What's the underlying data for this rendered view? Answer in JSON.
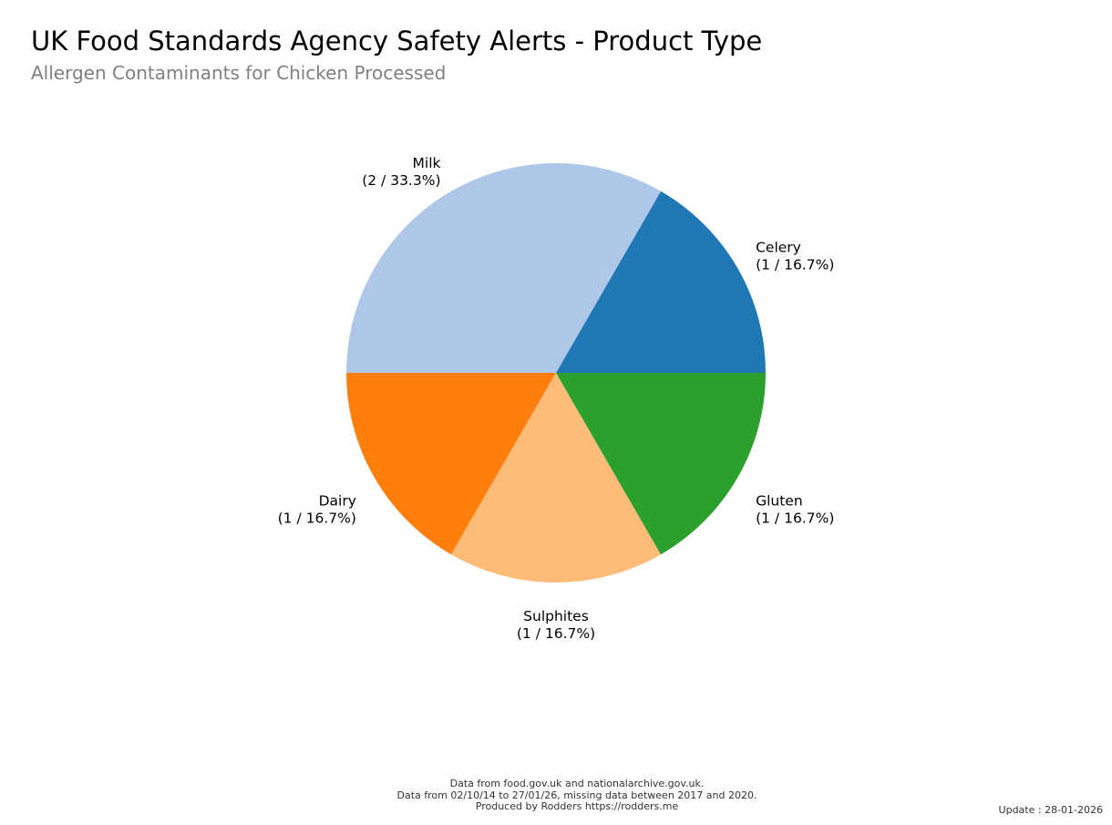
{
  "header": {
    "title": "UK Food Standards Agency Safety Alerts - Product Type",
    "subtitle": "Allergen Contaminants for Chicken Processed"
  },
  "chart_data": {
    "type": "pie",
    "title": "UK Food Standards Agency Safety Alerts - Product Type",
    "subtitle": "Allergen Contaminants for Chicken Processed",
    "slices": [
      {
        "label": "Celery",
        "value": 1,
        "label_text": "(1 / 16.7%)",
        "color": "#1f77b4"
      },
      {
        "label": "Milk",
        "value": 2,
        "label_text": "(2 / 33.3%)",
        "color": "#aec7e8"
      },
      {
        "label": "Dairy",
        "value": 1,
        "label_text": "(1 / 16.7%)",
        "color": "#ff7f0e"
      },
      {
        "label": "Sulphites",
        "value": 1,
        "label_text": "(1 / 16.7%)",
        "color": "#ffbb78"
      },
      {
        "label": "Gluten",
        "value": 1,
        "label_text": "(1 / 16.7%)",
        "color": "#2ca02c"
      }
    ],
    "start_angle_deg": 0,
    "direction": "counterclockwise"
  },
  "footer": {
    "line1": "Data from food.gov.uk and nationalarchive.gov.uk.",
    "line2": "Data from 02/10/14 to 27/01/26, missing data between 2017 and 2020.",
    "line3": "Produced by Rodders https://rodders.me",
    "update": "Update : 28-01-2026"
  }
}
